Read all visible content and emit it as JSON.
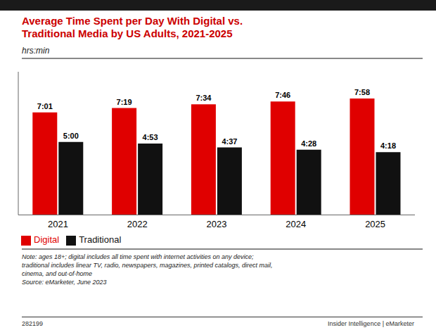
{
  "chart_data": {
    "type": "bar",
    "title": "Average Time Spent per Day With Digital vs.\nTraditional Media by US Adults, 2021-2025",
    "subtitle": "hrs:min",
    "categories": [
      "2021",
      "2022",
      "2023",
      "2024",
      "2025"
    ],
    "series": [
      {
        "name": "Digital",
        "color": "#e00000",
        "values": [
          7.0167,
          7.3167,
          7.5667,
          7.7667,
          7.9667
        ],
        "value_labels": [
          "7:01",
          "7:19",
          "7:34",
          "7:46",
          "7:58"
        ]
      },
      {
        "name": "Traditional",
        "color": "#111111",
        "values": [
          5.0,
          4.8833,
          4.6167,
          4.4667,
          4.3
        ],
        "value_labels": [
          "5:00",
          "4:53",
          "4:37",
          "4:28",
          "4:18"
        ]
      }
    ],
    "ylim": [
      0,
      9.8
    ],
    "grid": false,
    "legend": "lower left",
    "data_labels": true,
    "tick_labels": "x",
    "annotations": [
      "Note: ages 18+; digital includes all time spent with internet activities on any device;\ntraditional includes linear TV, radio, newspapers, magazines, printed catalogs, direct mail,\ncinema, and out-of-home\nSource: eMarketer, June 2023",
      "282199",
      "Insider Intelligence | eMarketer"
    ]
  }
}
